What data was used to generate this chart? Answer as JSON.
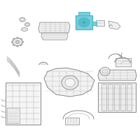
{
  "background_color": "#ffffff",
  "highlight_color": "#4ab8c8",
  "highlight_face": "#7acfda",
  "line_color": "#aaaaaa",
  "outline_color": "#888888",
  "dark_color": "#666666",
  "fig_width": 2.0,
  "fig_height": 2.0,
  "dpi": 100
}
